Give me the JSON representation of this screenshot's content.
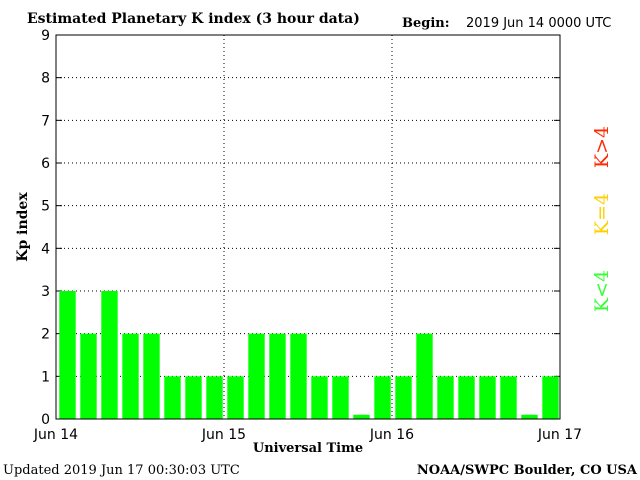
{
  "header": {
    "title": "Estimated Planetary K index (3 hour data)",
    "begin_label": "Begin:",
    "begin_value": "2019 Jun 14 0000 UTC"
  },
  "footer": {
    "updated": "Updated 2019 Jun 17 00:30:03 UTC",
    "source": "NOAA/SWPC Boulder, CO USA"
  },
  "legend": {
    "above": {
      "label": "K>4",
      "color": "#ff2a00"
    },
    "equal": {
      "label": "K=4",
      "color": "#ffd000"
    },
    "below": {
      "label": "K<4",
      "color": "#33ff33"
    }
  },
  "chart_data": {
    "type": "bar",
    "xlabel": "Universal Time",
    "ylabel": "Kp index",
    "ylim": [
      0,
      9
    ],
    "yticks": [
      0,
      1,
      2,
      3,
      4,
      5,
      6,
      7,
      8,
      9
    ],
    "xticks": [
      "Jun 14",
      "Jun 15",
      "Jun 16",
      "Jun 17"
    ],
    "grid": "dotted",
    "bar_color": "#00ff00",
    "interval_hours": 3,
    "values": [
      3,
      2,
      3,
      2,
      2,
      1,
      1,
      1,
      1,
      2,
      2,
      2,
      1,
      1,
      0.1,
      1,
      1,
      2,
      1,
      1,
      1,
      1,
      0.1,
      1
    ]
  }
}
